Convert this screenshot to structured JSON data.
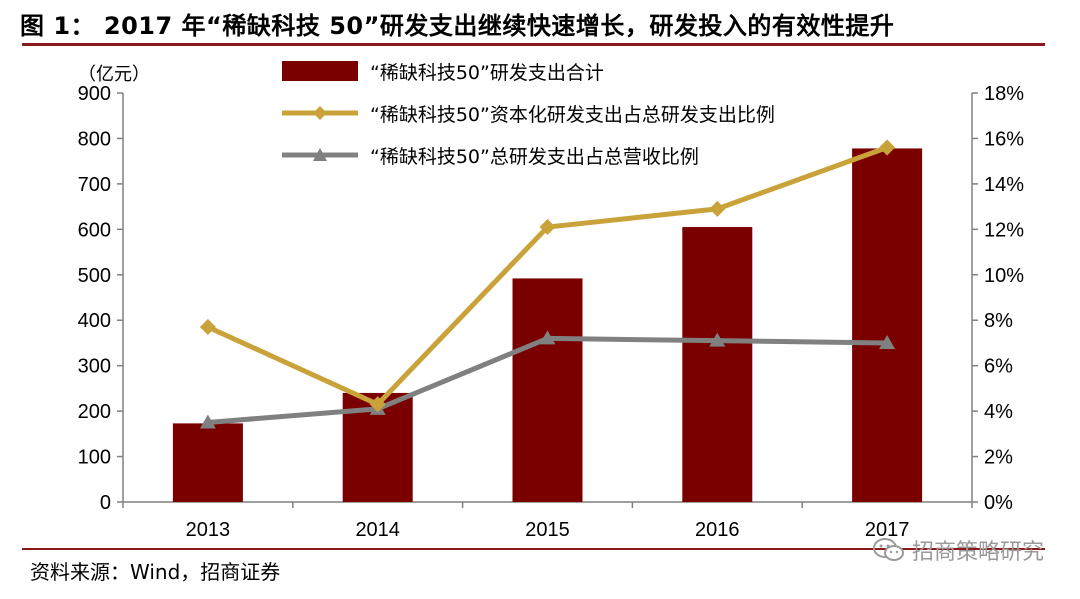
{
  "title": "图 1：  2017 年“稀缺科技 50”研发支出继续快速增长，研发投入的有效性提升",
  "unit_label": "（亿元）",
  "source": "资料来源：Wind，招商证券",
  "watermark": "招商策略研究",
  "colors": {
    "bar": "#7a0000",
    "line_gold": "#c9a23a",
    "line_gray": "#808080",
    "rule": "#8b1a1a"
  },
  "chart_data": {
    "type": "bar",
    "categories": [
      "2013",
      "2014",
      "2015",
      "2016",
      "2017"
    ],
    "y_left": {
      "ticks": [
        "0",
        "100",
        "200",
        "300",
        "400",
        "500",
        "600",
        "700",
        "800",
        "900"
      ],
      "ylim": [
        0,
        900
      ]
    },
    "y_right": {
      "ticks": [
        "0%",
        "2%",
        "4%",
        "6%",
        "8%",
        "10%",
        "12%",
        "14%",
        "16%",
        "18%"
      ],
      "ylim": [
        0,
        18
      ]
    },
    "series": [
      {
        "name": "“稀缺科技50”研发支出合计",
        "type": "bar",
        "axis": "left",
        "values": [
          173,
          240,
          492,
          605,
          778
        ]
      },
      {
        "name": "“稀缺科技50”资本化研发支出占总研发支出比例",
        "type": "line",
        "axis": "right",
        "marker": "diamond",
        "values": [
          7.7,
          4.3,
          12.1,
          12.9,
          15.6
        ]
      },
      {
        "name": "“稀缺科技50”总研发支出占总营收比例",
        "type": "line",
        "axis": "right",
        "marker": "triangle",
        "values": [
          3.5,
          4.1,
          7.2,
          7.1,
          7.0
        ]
      }
    ],
    "legend_position": "top",
    "grid": false
  }
}
